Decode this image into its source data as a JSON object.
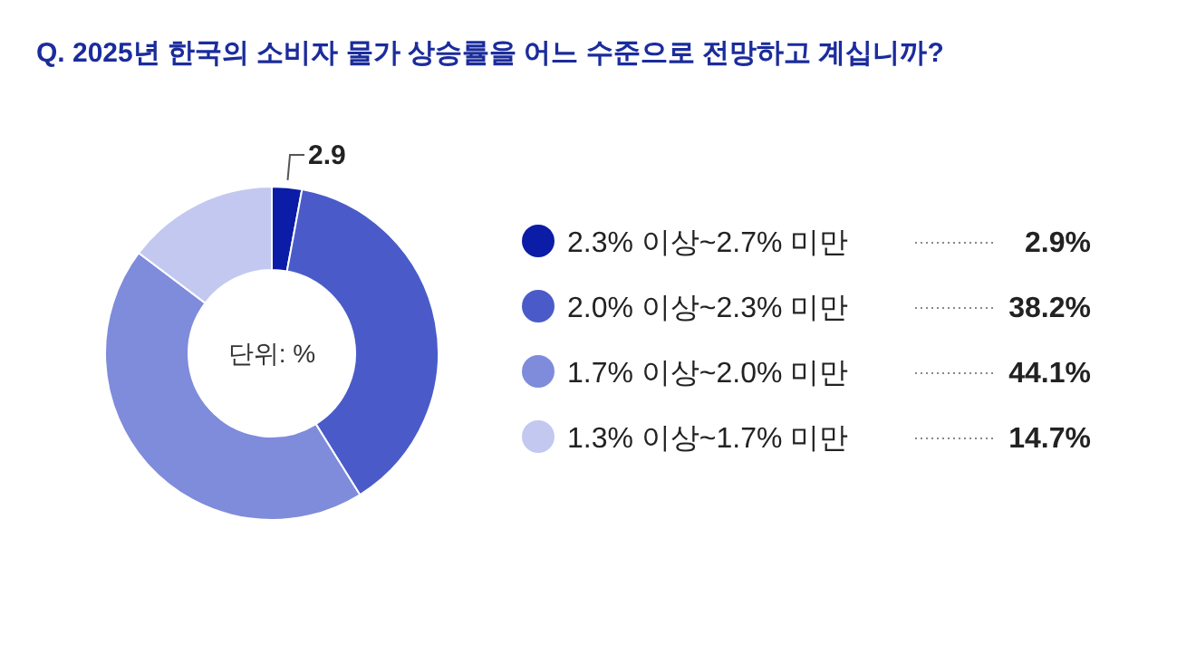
{
  "chart_data": {
    "type": "donut",
    "title": "Q. 2025년 한국의 소비자 물가 상승률을 어느 수준으로 전망하고 계십니까?",
    "categories": [
      "2.3% 이상~2.7% 미만",
      "2.0% 이상~2.3% 미만",
      "1.7% 이상~2.0% 미만",
      "1.3% 이상~1.7% 미만"
    ],
    "values": [
      2.9,
      38.2,
      44.1,
      14.7
    ],
    "colors": [
      "#0b1ca6",
      "#4a5bc9",
      "#7f8bdb",
      "#c3c8f0"
    ],
    "value_labels": [
      "2.9%",
      "38.2%",
      "44.1%",
      "14.7%"
    ],
    "legend": "right",
    "annotations": [
      {
        "text": "2.9",
        "x": "2.3% 이상~2.7% 미만"
      },
      "단위: %"
    ]
  }
}
